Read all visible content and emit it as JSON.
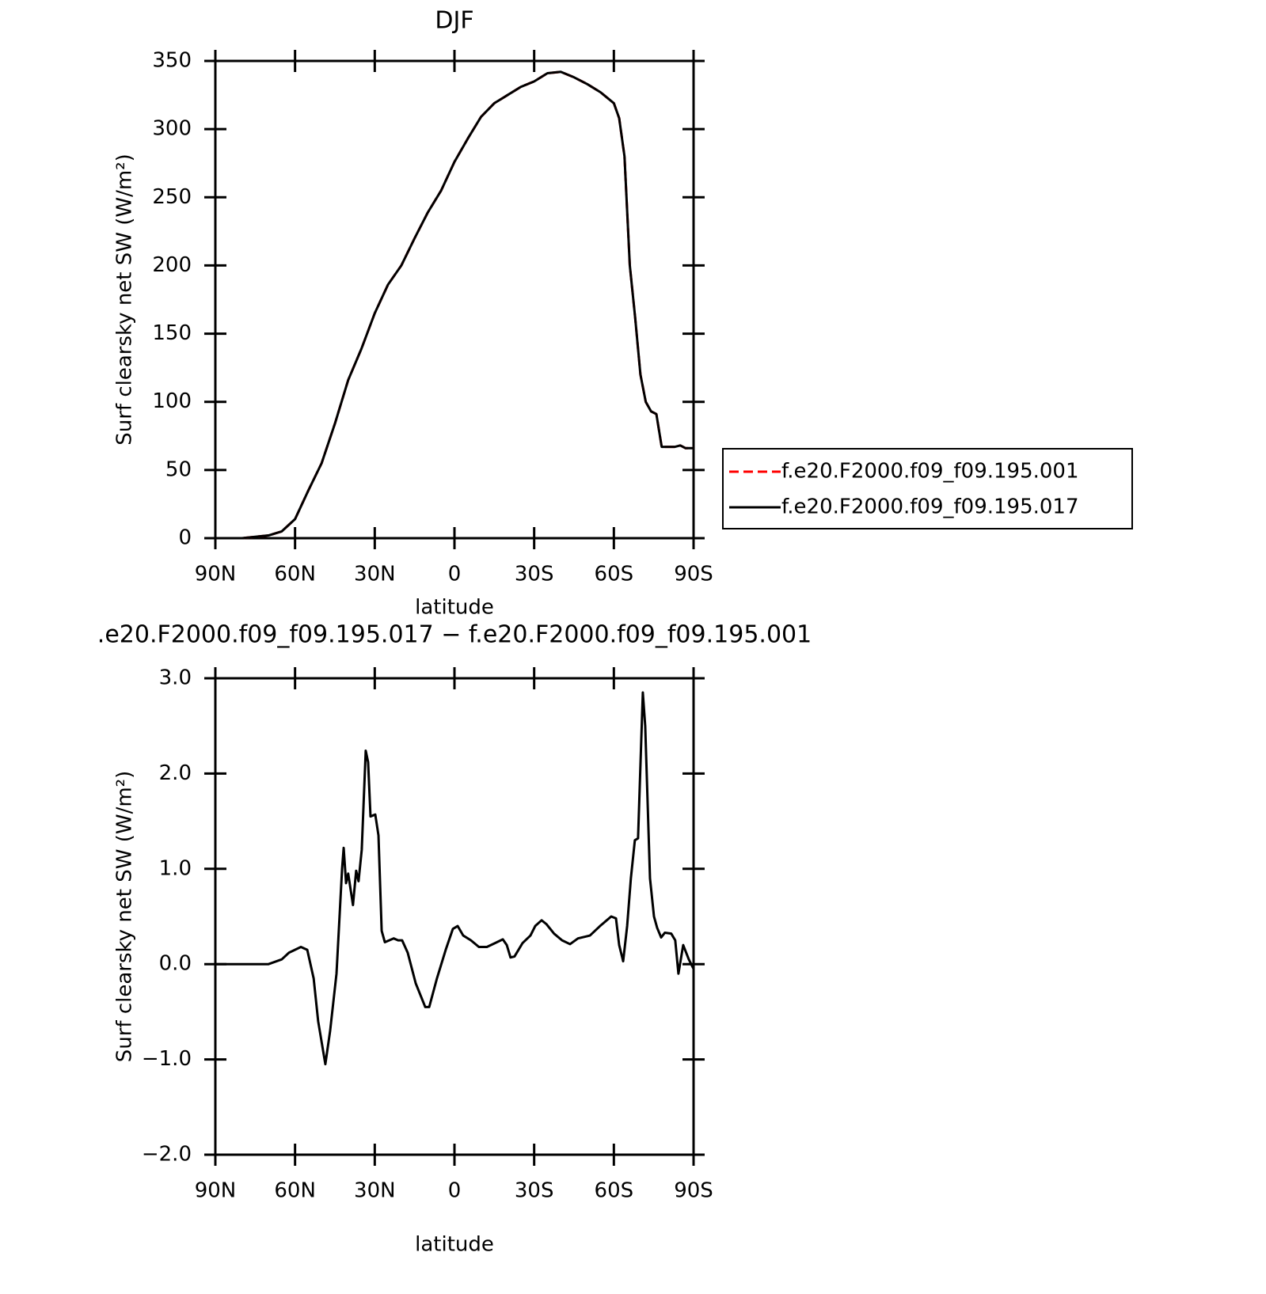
{
  "chart_data": [
    {
      "type": "line",
      "title": "DJF",
      "xlabel": "latitude",
      "ylabel": "Surf clearsky net SW (W/m²)",
      "xlim": [
        90,
        -90
      ],
      "xticks": [
        {
          "value": 90,
          "label": "90N"
        },
        {
          "value": 60,
          "label": "60N"
        },
        {
          "value": 30,
          "label": "30N"
        },
        0,
        {
          "value": -30,
          "label": "30S"
        },
        {
          "value": -60,
          "label": "60S"
        },
        {
          "value": -90,
          "label": "90S"
        }
      ],
      "ylim": [
        0,
        350
      ],
      "yticks": [
        0,
        50,
        100,
        150,
        200,
        250,
        300,
        350
      ],
      "legend_position": "right",
      "x": [
        90,
        80,
        70,
        65,
        60,
        55,
        50,
        45,
        40,
        35,
        30,
        25,
        20,
        15,
        10,
        5,
        0,
        -5,
        -10,
        -15,
        -20,
        -25,
        -30,
        -35,
        -40,
        -45,
        -50,
        -55,
        -60,
        -62,
        -64,
        -66,
        -68,
        -70,
        -72,
        -74,
        -76,
        -78,
        -80,
        -83,
        -85,
        -87,
        -90
      ],
      "series": [
        {
          "name": "f.e20.F2000.f09_f09.195.001",
          "color": "#ff0000",
          "line_style": "dashed",
          "values": [
            0,
            0,
            2,
            5,
            14,
            35,
            55,
            84,
            116,
            139,
            165,
            186,
            200,
            220,
            239,
            255,
            276,
            293,
            309,
            319,
            325,
            331,
            335,
            341,
            342,
            338,
            333,
            327,
            319,
            308,
            280,
            200,
            162,
            120,
            100,
            93,
            91,
            67,
            67,
            67,
            68,
            66,
            66
          ]
        },
        {
          "name": "f.e20.F2000.f09_f09.195.017",
          "color": "#000000",
          "line_style": "solid",
          "values": [
            0,
            0,
            2,
            5,
            14,
            35,
            55,
            84,
            116,
            139,
            165,
            186,
            200,
            220,
            239,
            255,
            276,
            293,
            309,
            319,
            325,
            331,
            335,
            341,
            342,
            338,
            333,
            327,
            319,
            308,
            280,
            200,
            162,
            120,
            100,
            93,
            91,
            67,
            67,
            67,
            68,
            66,
            66
          ]
        }
      ]
    },
    {
      "type": "line",
      "title": ".e20.F2000.f09_f09.195.017 − f.e20.F2000.f09_f09.195.001",
      "xlabel": "latitude",
      "ylabel": "Surf clearsky net SW (W/m²)",
      "xlim": [
        90,
        -90
      ],
      "xticks": [
        {
          "value": 90,
          "label": "90N"
        },
        {
          "value": 60,
          "label": "60N"
        },
        {
          "value": 30,
          "label": "30N"
        },
        0,
        {
          "value": -30,
          "label": "30S"
        },
        {
          "value": -60,
          "label": "60S"
        },
        {
          "value": -90,
          "label": "90S"
        }
      ],
      "ylim": [
        -2,
        3
      ],
      "yticks": [
        {
          "value": -2,
          "label": "−2.0"
        },
        {
          "value": -1,
          "label": "−1.0"
        },
        {
          "value": 0,
          "label": "0.0"
        },
        {
          "value": 1,
          "label": "1.0"
        },
        {
          "value": 2,
          "label": "2.0"
        },
        {
          "value": 3,
          "label": "3.0"
        }
      ],
      "color": "#000000",
      "x": [
        90,
        70,
        65,
        62.3,
        57.8,
        55.4,
        53,
        51.3,
        48.6,
        46.8,
        44.4,
        42.3,
        41.7,
        40.8,
        40,
        38.2,
        37,
        36.1,
        34.9,
        33.4,
        32.5,
        31.6,
        29.8,
        28.6,
        27.4,
        26.2,
        22.9,
        21.2,
        19.7,
        17.6,
        14.6,
        11,
        9.5,
        6.6,
        3.3,
        0.6,
        -1.2,
        -3.3,
        -6.2,
        -9.2,
        -12.2,
        -15.2,
        -18.2,
        -19.7,
        -21.1,
        -22.6,
        -25.6,
        -28.6,
        -30.4,
        -32.8,
        -34.6,
        -37.5,
        -40.5,
        -43.5,
        -46.5,
        -51,
        -54.8,
        -59,
        -60.8,
        -62,
        -63.5,
        -65,
        -66.4,
        -67.9,
        -69.1,
        -70.9,
        -71.8,
        -73.6,
        -75.1,
        -76.3,
        -77.8,
        -79.2,
        -81.6,
        -83.1,
        -84.3,
        -86.1,
        -88.2,
        -90
      ],
      "values": [
        0,
        0,
        0.05,
        0.12,
        0.18,
        0.15,
        -0.15,
        -0.6,
        -1.05,
        -0.7,
        -0.1,
        1.0,
        1.22,
        0.85,
        0.95,
        0.62,
        0.98,
        0.87,
        1.2,
        2.24,
        2.12,
        1.55,
        1.57,
        1.35,
        0.35,
        0.23,
        0.27,
        0.25,
        0.25,
        0.12,
        -0.2,
        -0.45,
        -0.45,
        -0.15,
        0.15,
        0.37,
        0.4,
        0.3,
        0.25,
        0.18,
        0.18,
        0.22,
        0.26,
        0.2,
        0.07,
        0.08,
        0.22,
        0.3,
        0.4,
        0.46,
        0.42,
        0.32,
        0.25,
        0.21,
        0.27,
        0.3,
        0.4,
        0.5,
        0.48,
        0.2,
        0.03,
        0.4,
        0.9,
        1.3,
        1.32,
        2.85,
        2.5,
        0.9,
        0.5,
        0.38,
        0.28,
        0.33,
        0.32,
        0.25,
        -0.1,
        0.2,
        0.05,
        -0.05
      ]
    }
  ]
}
